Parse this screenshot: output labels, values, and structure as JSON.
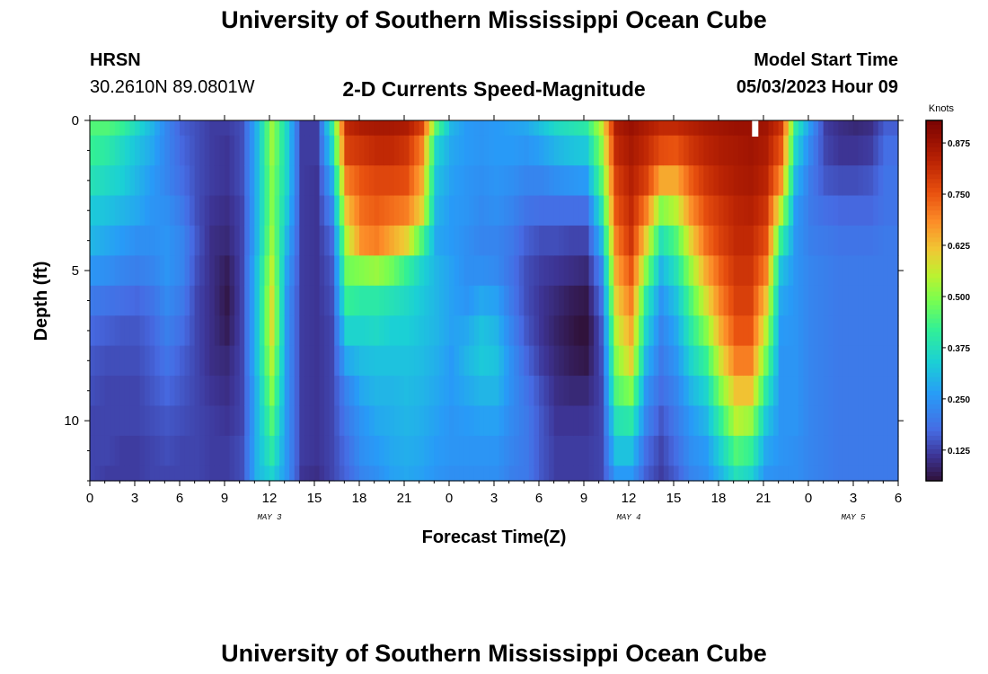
{
  "header": {
    "title": "University of Southern Mississippi Ocean Cube",
    "station": "HRSN",
    "coords": "30.2610N  89.0801W",
    "subtitle": "2-D Currents Speed-Magnitude",
    "model_label": "Model Start Time",
    "model_time": "05/03/2023 Hour 09"
  },
  "footer_title": "University of Southern Mississippi Ocean Cube",
  "chart_data": {
    "type": "heatmap",
    "title": "2-D Currents Speed-Magnitude",
    "xlabel": "Forecast Time(Z)",
    "ylabel": "Depth (ft)",
    "colorbar_label": "Knots",
    "colorbar_ticks": [
      "0.125",
      "0.250",
      "0.375",
      "0.500",
      "0.625",
      "0.750",
      "0.875"
    ],
    "colorbar_range": [
      0.05,
      0.93
    ],
    "x_ticks": [
      "0",
      "3",
      "6",
      "9",
      "12",
      "15",
      "18",
      "21",
      "0",
      "3",
      "6",
      "9",
      "12",
      "15",
      "18",
      "21",
      "0",
      "3",
      "6"
    ],
    "date_labels": [
      {
        "label": "MAY 3",
        "hour": 12
      },
      {
        "label": "MAY 4",
        "hour": 36
      },
      {
        "label": "MAY 5",
        "hour": 51
      }
    ],
    "xlim_hours": [
      0,
      54
    ],
    "y_ticks": [
      "0",
      "5",
      "10"
    ],
    "ylim_ft": [
      0,
      12
    ],
    "depth_levels_ft": [
      0,
      1,
      2,
      3,
      4,
      5,
      6,
      7,
      8,
      9,
      10,
      11,
      12
    ],
    "speed_knots_by_hour": [
      {
        "hour": 0,
        "speed": [
          0.45,
          0.42,
          0.38,
          0.33,
          0.3,
          0.25,
          0.2,
          0.17,
          0.15,
          0.14,
          0.13,
          0.13,
          0.13
        ]
      },
      {
        "hour": 1,
        "speed": [
          0.45,
          0.4,
          0.36,
          0.32,
          0.28,
          0.24,
          0.19,
          0.16,
          0.14,
          0.13,
          0.13,
          0.13,
          0.12
        ]
      },
      {
        "hour": 2,
        "speed": [
          0.42,
          0.36,
          0.34,
          0.3,
          0.26,
          0.22,
          0.18,
          0.15,
          0.14,
          0.13,
          0.13,
          0.12,
          0.12
        ]
      },
      {
        "hour": 3,
        "speed": [
          0.36,
          0.32,
          0.3,
          0.28,
          0.24,
          0.21,
          0.17,
          0.15,
          0.14,
          0.13,
          0.13,
          0.12,
          0.12
        ]
      },
      {
        "hour": 4,
        "speed": [
          0.3,
          0.28,
          0.26,
          0.25,
          0.24,
          0.22,
          0.19,
          0.17,
          0.16,
          0.15,
          0.14,
          0.13,
          0.13
        ]
      },
      {
        "hour": 5,
        "speed": [
          0.22,
          0.22,
          0.22,
          0.24,
          0.25,
          0.25,
          0.23,
          0.21,
          0.19,
          0.17,
          0.15,
          0.14,
          0.13
        ]
      },
      {
        "hour": 6,
        "speed": [
          0.16,
          0.17,
          0.18,
          0.2,
          0.22,
          0.22,
          0.2,
          0.18,
          0.16,
          0.15,
          0.14,
          0.13,
          0.13
        ]
      },
      {
        "hour": 7,
        "speed": [
          0.14,
          0.14,
          0.14,
          0.14,
          0.15,
          0.14,
          0.13,
          0.13,
          0.13,
          0.13,
          0.13,
          0.13,
          0.13
        ]
      },
      {
        "hour": 8,
        "speed": [
          0.12,
          0.12,
          0.12,
          0.11,
          0.1,
          0.1,
          0.1,
          0.1,
          0.1,
          0.11,
          0.12,
          0.12,
          0.12
        ]
      },
      {
        "hour": 9,
        "speed": [
          0.12,
          0.11,
          0.11,
          0.1,
          0.09,
          0.07,
          0.06,
          0.07,
          0.09,
          0.1,
          0.11,
          0.12,
          0.12
        ]
      },
      {
        "hour": 10,
        "speed": [
          0.14,
          0.14,
          0.14,
          0.13,
          0.13,
          0.13,
          0.13,
          0.13,
          0.13,
          0.13,
          0.13,
          0.14,
          0.14
        ]
      },
      {
        "hour": 11,
        "speed": [
          0.3,
          0.3,
          0.3,
          0.3,
          0.3,
          0.32,
          0.32,
          0.32,
          0.32,
          0.3,
          0.3,
          0.3,
          0.3
        ]
      },
      {
        "hour": 12,
        "speed": [
          0.52,
          0.52,
          0.5,
          0.5,
          0.52,
          0.55,
          0.58,
          0.58,
          0.54,
          0.5,
          0.45,
          0.4,
          0.35
        ]
      },
      {
        "hour": 13,
        "speed": [
          0.35,
          0.35,
          0.35,
          0.33,
          0.3,
          0.27,
          0.25,
          0.25,
          0.25,
          0.25,
          0.25,
          0.25,
          0.25
        ]
      },
      {
        "hour": 14,
        "speed": [
          0.12,
          0.12,
          0.12,
          0.12,
          0.12,
          0.12,
          0.12,
          0.12,
          0.12,
          0.12,
          0.12,
          0.12,
          0.11
        ]
      },
      {
        "hour": 15,
        "speed": [
          0.12,
          0.12,
          0.11,
          0.11,
          0.11,
          0.11,
          0.11,
          0.11,
          0.11,
          0.11,
          0.11,
          0.11,
          0.1
        ]
      },
      {
        "hour": 16,
        "speed": [
          0.4,
          0.35,
          0.28,
          0.22,
          0.17,
          0.15,
          0.14,
          0.13,
          0.13,
          0.13,
          0.13,
          0.13,
          0.13
        ]
      },
      {
        "hour": 17,
        "speed": [
          0.82,
          0.78,
          0.7,
          0.62,
          0.55,
          0.48,
          0.42,
          0.35,
          0.28,
          0.22,
          0.2,
          0.18,
          0.17
        ]
      },
      {
        "hour": 18,
        "speed": [
          0.85,
          0.8,
          0.75,
          0.72,
          0.68,
          0.5,
          0.4,
          0.35,
          0.31,
          0.28,
          0.25,
          0.24,
          0.22
        ]
      },
      {
        "hour": 19,
        "speed": [
          0.86,
          0.82,
          0.77,
          0.74,
          0.7,
          0.52,
          0.4,
          0.36,
          0.32,
          0.3,
          0.28,
          0.26,
          0.24
        ]
      },
      {
        "hour": 20,
        "speed": [
          0.86,
          0.82,
          0.77,
          0.72,
          0.65,
          0.48,
          0.38,
          0.34,
          0.32,
          0.3,
          0.29,
          0.28,
          0.27
        ]
      },
      {
        "hour": 21,
        "speed": [
          0.85,
          0.8,
          0.76,
          0.7,
          0.6,
          0.42,
          0.36,
          0.34,
          0.32,
          0.31,
          0.3,
          0.29,
          0.28
        ]
      },
      {
        "hour": 22,
        "speed": [
          0.78,
          0.7,
          0.65,
          0.6,
          0.45,
          0.35,
          0.33,
          0.32,
          0.31,
          0.3,
          0.29,
          0.28,
          0.27
        ]
      },
      {
        "hour": 23,
        "speed": [
          0.45,
          0.35,
          0.32,
          0.3,
          0.28,
          0.3,
          0.3,
          0.3,
          0.29,
          0.28,
          0.27,
          0.26,
          0.25
        ]
      },
      {
        "hour": 24,
        "speed": [
          0.3,
          0.28,
          0.27,
          0.26,
          0.26,
          0.27,
          0.27,
          0.27,
          0.26,
          0.26,
          0.25,
          0.25,
          0.24
        ]
      },
      {
        "hour": 25,
        "speed": [
          0.26,
          0.26,
          0.25,
          0.25,
          0.24,
          0.24,
          0.25,
          0.28,
          0.3,
          0.28,
          0.26,
          0.25,
          0.24
        ]
      },
      {
        "hour": 26,
        "speed": [
          0.25,
          0.25,
          0.24,
          0.23,
          0.22,
          0.24,
          0.28,
          0.32,
          0.33,
          0.3,
          0.27,
          0.25,
          0.24
        ]
      },
      {
        "hour": 27,
        "speed": [
          0.26,
          0.26,
          0.25,
          0.24,
          0.22,
          0.23,
          0.27,
          0.3,
          0.32,
          0.3,
          0.27,
          0.25,
          0.24
        ]
      },
      {
        "hour": 28,
        "speed": [
          0.27,
          0.26,
          0.24,
          0.22,
          0.2,
          0.19,
          0.2,
          0.22,
          0.24,
          0.24,
          0.23,
          0.22,
          0.21
        ]
      },
      {
        "hour": 29,
        "speed": [
          0.28,
          0.25,
          0.22,
          0.19,
          0.16,
          0.14,
          0.14,
          0.15,
          0.17,
          0.19,
          0.2,
          0.2,
          0.2
        ]
      },
      {
        "hour": 30,
        "speed": [
          0.32,
          0.27,
          0.22,
          0.18,
          0.14,
          0.12,
          0.11,
          0.11,
          0.12,
          0.14,
          0.15,
          0.15,
          0.15
        ]
      },
      {
        "hour": 31,
        "speed": [
          0.36,
          0.3,
          0.24,
          0.18,
          0.14,
          0.11,
          0.09,
          0.08,
          0.09,
          0.1,
          0.11,
          0.12,
          0.12
        ]
      },
      {
        "hour": 32,
        "speed": [
          0.38,
          0.32,
          0.25,
          0.18,
          0.13,
          0.1,
          0.07,
          0.06,
          0.07,
          0.09,
          0.11,
          0.12,
          0.12
        ]
      },
      {
        "hour": 33,
        "speed": [
          0.4,
          0.33,
          0.26,
          0.18,
          0.13,
          0.09,
          0.06,
          0.04,
          0.06,
          0.09,
          0.11,
          0.12,
          0.12
        ]
      },
      {
        "hour": 34,
        "speed": [
          0.55,
          0.5,
          0.45,
          0.38,
          0.3,
          0.22,
          0.18,
          0.15,
          0.14,
          0.13,
          0.13,
          0.13,
          0.13
        ]
      },
      {
        "hour": 35,
        "speed": [
          0.85,
          0.82,
          0.78,
          0.75,
          0.7,
          0.65,
          0.6,
          0.55,
          0.5,
          0.45,
          0.38,
          0.32,
          0.26
        ]
      },
      {
        "hour": 36,
        "speed": [
          0.88,
          0.86,
          0.84,
          0.82,
          0.8,
          0.75,
          0.7,
          0.65,
          0.6,
          0.5,
          0.4,
          0.32,
          0.26
        ]
      },
      {
        "hour": 37,
        "speed": [
          0.85,
          0.82,
          0.78,
          0.7,
          0.6,
          0.5,
          0.4,
          0.35,
          0.3,
          0.25,
          0.22,
          0.18,
          0.16
        ]
      },
      {
        "hour": 38,
        "speed": [
          0.82,
          0.76,
          0.65,
          0.5,
          0.38,
          0.3,
          0.25,
          0.22,
          0.2,
          0.18,
          0.15,
          0.13,
          0.12
        ]
      },
      {
        "hour": 39,
        "speed": [
          0.82,
          0.75,
          0.65,
          0.55,
          0.45,
          0.38,
          0.32,
          0.28,
          0.25,
          0.22,
          0.2,
          0.18,
          0.16
        ]
      },
      {
        "hour": 40,
        "speed": [
          0.84,
          0.8,
          0.74,
          0.68,
          0.6,
          0.52,
          0.45,
          0.4,
          0.35,
          0.3,
          0.26,
          0.24,
          0.22
        ]
      },
      {
        "hour": 41,
        "speed": [
          0.86,
          0.83,
          0.8,
          0.76,
          0.72,
          0.65,
          0.58,
          0.5,
          0.42,
          0.35,
          0.3,
          0.26,
          0.24
        ]
      },
      {
        "hour": 42,
        "speed": [
          0.87,
          0.85,
          0.83,
          0.8,
          0.78,
          0.74,
          0.7,
          0.65,
          0.58,
          0.5,
          0.42,
          0.35,
          0.3
        ]
      },
      {
        "hour": 43,
        "speed": [
          0.88,
          0.86,
          0.85,
          0.83,
          0.82,
          0.8,
          0.78,
          0.75,
          0.7,
          0.62,
          0.55,
          0.45,
          0.38
        ]
      },
      {
        "hour": 44,
        "speed": [
          0.88,
          0.87,
          0.86,
          0.84,
          0.82,
          0.8,
          0.78,
          0.75,
          0.7,
          0.62,
          0.52,
          0.42,
          0.35
        ]
      },
      {
        "hour": 45,
        "speed": [
          0.87,
          0.85,
          0.83,
          0.8,
          0.76,
          0.7,
          0.62,
          0.55,
          0.48,
          0.4,
          0.33,
          0.28,
          0.25
        ]
      },
      {
        "hour": 46,
        "speed": [
          0.8,
          0.75,
          0.68,
          0.55,
          0.42,
          0.32,
          0.28,
          0.26,
          0.25,
          0.25,
          0.25,
          0.25,
          0.24
        ]
      },
      {
        "hour": 47,
        "speed": [
          0.4,
          0.35,
          0.3,
          0.26,
          0.25,
          0.25,
          0.25,
          0.25,
          0.25,
          0.25,
          0.25,
          0.24,
          0.24
        ]
      },
      {
        "hour": 48,
        "speed": [
          0.25,
          0.22,
          0.2,
          0.2,
          0.21,
          0.22,
          0.22,
          0.22,
          0.22,
          0.22,
          0.22,
          0.22,
          0.22
        ]
      },
      {
        "hour": 49,
        "speed": [
          0.12,
          0.13,
          0.15,
          0.18,
          0.2,
          0.21,
          0.21,
          0.21,
          0.21,
          0.21,
          0.21,
          0.21,
          0.21
        ]
      },
      {
        "hour": 50,
        "speed": [
          0.1,
          0.11,
          0.14,
          0.17,
          0.19,
          0.2,
          0.2,
          0.2,
          0.2,
          0.2,
          0.2,
          0.2,
          0.2
        ]
      },
      {
        "hour": 51,
        "speed": [
          0.09,
          0.11,
          0.14,
          0.17,
          0.19,
          0.2,
          0.2,
          0.2,
          0.2,
          0.2,
          0.2,
          0.2,
          0.2
        ]
      },
      {
        "hour": 52,
        "speed": [
          0.1,
          0.12,
          0.15,
          0.17,
          0.19,
          0.2,
          0.2,
          0.2,
          0.2,
          0.2,
          0.2,
          0.2,
          0.2
        ]
      },
      {
        "hour": 53,
        "speed": [
          0.16,
          0.18,
          0.19,
          0.19,
          0.2,
          0.2,
          0.2,
          0.2,
          0.2,
          0.2,
          0.2,
          0.2,
          0.2
        ]
      }
    ],
    "missing_value_marker": {
      "hour": 44,
      "depth_ft": 0
    }
  }
}
